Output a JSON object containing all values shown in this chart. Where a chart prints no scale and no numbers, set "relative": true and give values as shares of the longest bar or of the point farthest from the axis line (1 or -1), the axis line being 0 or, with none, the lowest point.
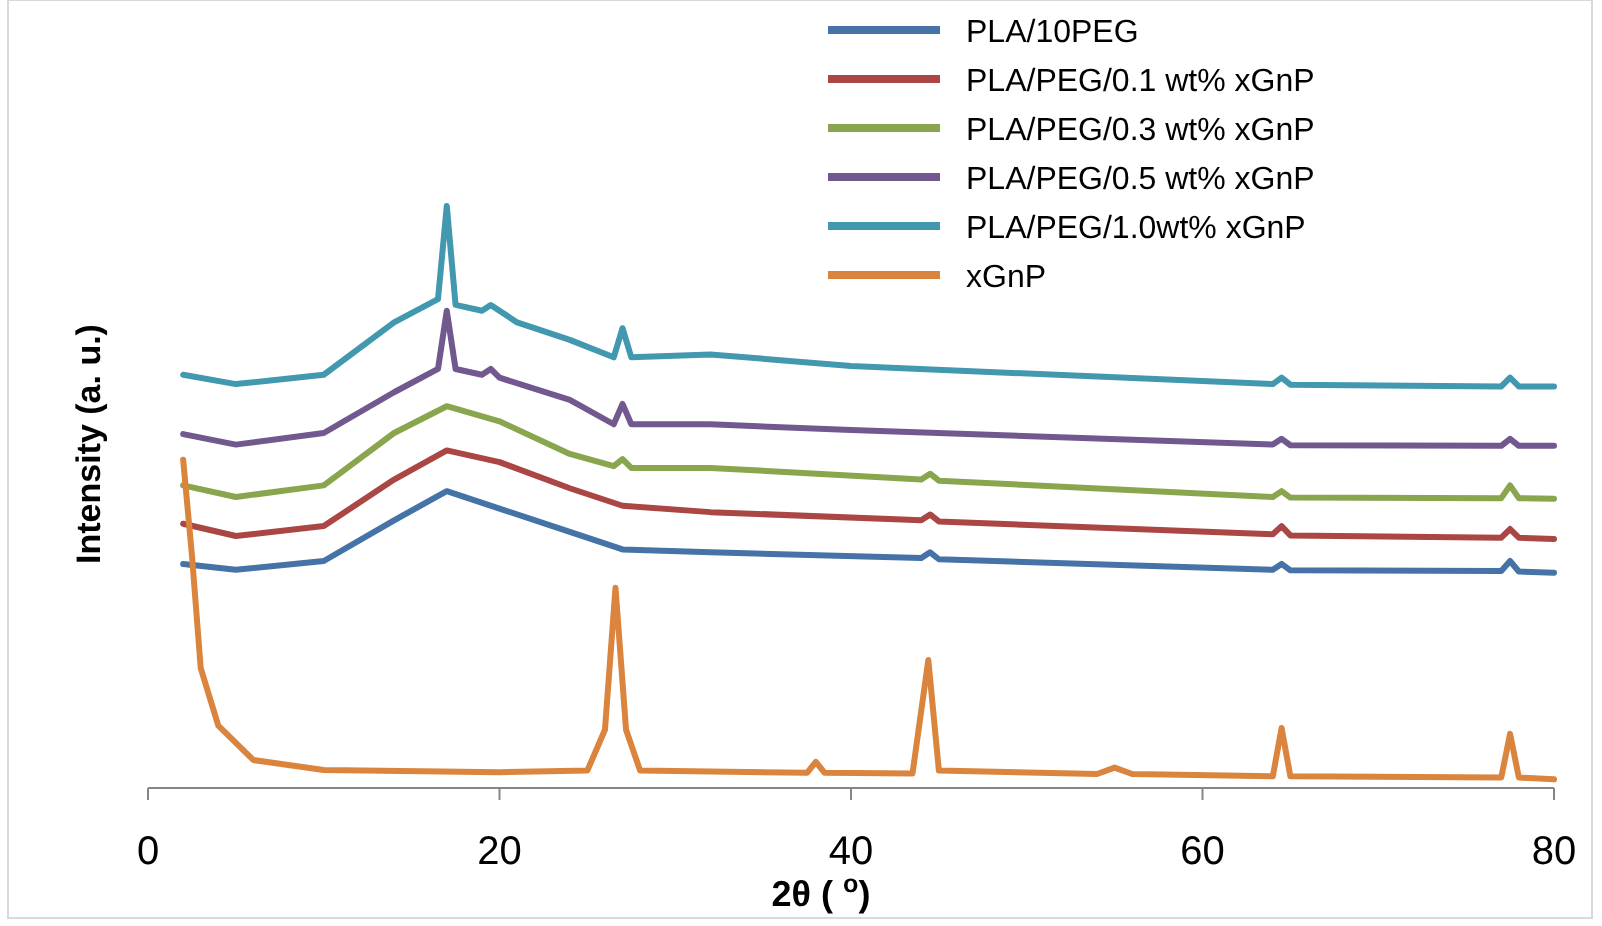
{
  "chart_data": {
    "type": "line",
    "relative": true,
    "xlabel": "2θ ( $^{o}$)",
    "ylabel": "Intensity (a. u.)",
    "xlim": [
      0,
      80
    ],
    "xticks": [
      0,
      20,
      40,
      60,
      80
    ],
    "legend": "top right",
    "grid": false,
    "marker": "none",
    "line_style": "solid",
    "series": [
      {
        "name": "PLA/10PEG",
        "color": "#4572a7",
        "x": [
          2,
          5,
          10,
          14,
          17,
          20,
          24,
          27,
          32,
          44,
          44.5,
          45,
          64,
          64.5,
          65,
          77,
          77.5,
          78,
          80
        ],
        "values": [
          0.385,
          0.375,
          0.39,
          0.46,
          0.51,
          0.48,
          0.44,
          0.41,
          0.405,
          0.395,
          0.405,
          0.393,
          0.375,
          0.385,
          0.374,
          0.373,
          0.39,
          0.372,
          0.37
        ]
      },
      {
        "name": "PLA/PEG/0.1 wt% xGnP",
        "color": "#aa4643",
        "x": [
          2,
          5,
          10,
          14,
          17,
          20,
          24,
          27,
          32,
          44,
          44.5,
          45,
          64,
          64.5,
          65,
          77,
          77.5,
          78,
          80
        ],
        "values": [
          0.454,
          0.433,
          0.45,
          0.53,
          0.58,
          0.56,
          0.515,
          0.485,
          0.474,
          0.46,
          0.47,
          0.458,
          0.436,
          0.45,
          0.434,
          0.43,
          0.445,
          0.43,
          0.428
        ]
      },
      {
        "name": "PLA/PEG/0.3 wt% xGnP",
        "color": "#89a54e",
        "x": [
          2,
          5,
          10,
          14,
          17,
          20,
          24,
          26.5,
          27,
          27.5,
          32,
          44,
          44.5,
          45,
          64,
          64.5,
          65,
          77,
          77.5,
          78,
          80
        ],
        "values": [
          0.52,
          0.5,
          0.52,
          0.61,
          0.656,
          0.63,
          0.574,
          0.553,
          0.565,
          0.55,
          0.55,
          0.53,
          0.54,
          0.528,
          0.5,
          0.51,
          0.499,
          0.498,
          0.52,
          0.498,
          0.497
        ]
      },
      {
        "name": "PLA/PEG/0.5 wt% xGnP",
        "color": "#71588f",
        "x": [
          2,
          5,
          10,
          14,
          16.5,
          17,
          17.5,
          19,
          19.5,
          20,
          24,
          26.5,
          27,
          27.5,
          32,
          40,
          64,
          64.5,
          65,
          77,
          77.5,
          78,
          80
        ],
        "values": [
          0.608,
          0.59,
          0.61,
          0.68,
          0.72,
          0.82,
          0.72,
          0.71,
          0.72,
          0.705,
          0.667,
          0.625,
          0.66,
          0.625,
          0.625,
          0.615,
          0.59,
          0.6,
          0.589,
          0.588,
          0.6,
          0.588,
          0.588
        ]
      },
      {
        "name": "PLA/PEG/1.0wt% xGnP",
        "color": "#4198af",
        "x": [
          2,
          5,
          10,
          14,
          16.5,
          17,
          17.5,
          19,
          19.5,
          21,
          24,
          26.5,
          27,
          27.5,
          32,
          40,
          64,
          64.5,
          65,
          77,
          77.5,
          78,
          80
        ],
        "values": [
          0.71,
          0.694,
          0.71,
          0.8,
          0.84,
          1,
          0.83,
          0.82,
          0.83,
          0.8,
          0.77,
          0.74,
          0.79,
          0.74,
          0.745,
          0.725,
          0.694,
          0.705,
          0.693,
          0.69,
          0.705,
          0.69,
          0.69
        ]
      },
      {
        "name": "xGnP",
        "color": "#db843d",
        "x": [
          2,
          2.5,
          3,
          4,
          6,
          10,
          20,
          25,
          26,
          26.6,
          27.2,
          28,
          37.5,
          38,
          38.5,
          43.5,
          44.4,
          45,
          54,
          55,
          56,
          64,
          64.5,
          65,
          77,
          77.5,
          78,
          80
        ],
        "values": [
          0.564,
          0.4,
          0.206,
          0.107,
          0.048,
          0.031,
          0.027,
          0.03,
          0.1,
          0.344,
          0.1,
          0.03,
          0.026,
          0.045,
          0.026,
          0.025,
          0.22,
          0.03,
          0.024,
          0.035,
          0.024,
          0.02,
          0.103,
          0.02,
          0.018,
          0.093,
          0.018,
          0.015
        ]
      }
    ]
  }
}
